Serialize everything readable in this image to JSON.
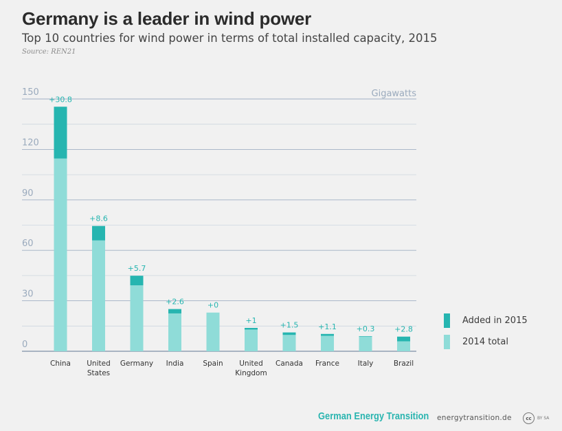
{
  "header": {
    "title": "Germany is a leader in wind power",
    "subtitle": "Top 10 countries for wind power in terms of total installed capacity, 2015",
    "source": "Source: REN21"
  },
  "chart_data": {
    "type": "bar",
    "stacked": true,
    "unit_label": "Gigawatts",
    "categories": [
      "China",
      "United States",
      "Germany",
      "India",
      "Spain",
      "United Kingdom",
      "Canada",
      "France",
      "Italy",
      "Brazil"
    ],
    "category_lines": [
      [
        "China"
      ],
      [
        "United",
        "States"
      ],
      [
        "Germany"
      ],
      [
        "India"
      ],
      [
        "Spain"
      ],
      [
        "United",
        "Kingdom"
      ],
      [
        "Canada"
      ],
      [
        "France"
      ],
      [
        "Italy"
      ],
      [
        "Brazil"
      ]
    ],
    "series": [
      {
        "name": "2014 total",
        "color": "#8fdcd8",
        "values": [
          114.6,
          65.9,
          39.2,
          22.5,
          23.0,
          12.9,
          9.7,
          9.2,
          8.7,
          5.9
        ]
      },
      {
        "name": "Added in 2015",
        "color": "#26b5b0",
        "values": [
          30.8,
          8.6,
          5.7,
          2.6,
          0,
          1,
          1.5,
          1.1,
          0.3,
          2.8
        ]
      }
    ],
    "data_labels": [
      "+30.8",
      "+8.6",
      "+5.7",
      "+2.6",
      "+0",
      "+1",
      "+1.5",
      "+1.1",
      "+0.3",
      "+2.8"
    ],
    "y_ticks": [
      0,
      30,
      60,
      90,
      120,
      150
    ],
    "ylim": [
      0,
      150
    ],
    "grid": true
  },
  "legend": {
    "items": [
      {
        "label": "Added in 2015",
        "color": "#26b5b0"
      },
      {
        "label": "2014 total",
        "color": "#8fdcd8"
      }
    ]
  },
  "footer": {
    "brand": "German Energy Transition",
    "url": "energytransition.de",
    "license_icon": "cc",
    "license_text": "BY SA"
  }
}
